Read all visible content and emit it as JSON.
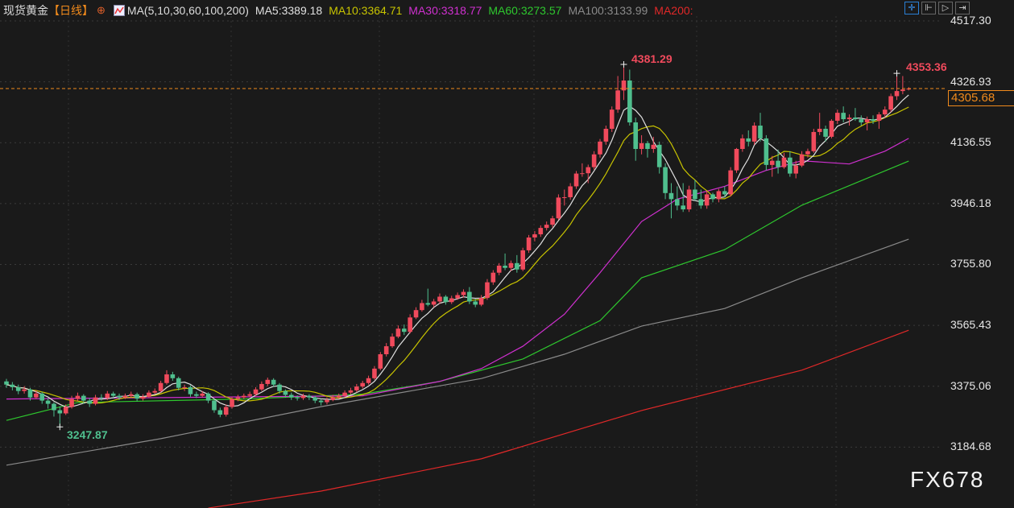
{
  "header": {
    "symbol": "现货黄金",
    "period": "【日线】",
    "ma_params": "MA(5,10,30,60,100,200)",
    "ma5": "MA5:3389.18",
    "ma10": "MA10:3364.71",
    "ma30": "MA30:3318.77",
    "ma60": "MA60:3273.57",
    "ma100": "MA100:3133.99",
    "ma200": "MA200:"
  },
  "toolbar": [
    "crosshair-icon",
    "zoom-range-icon",
    "play-icon",
    "exit-icon"
  ],
  "watermark": "FX678",
  "colors": {
    "up": "#f04a5c",
    "down": "#4fbf8e",
    "ma5": "#e0e0e0",
    "ma10": "#c8c400",
    "ma30": "#d030d0",
    "ma60": "#2ec82e",
    "ma100": "#8a8a8a",
    "ma200": "#e02828",
    "current": "#f08a1c",
    "background": "#1a1a1a"
  },
  "chart_data": {
    "type": "candlestick",
    "title": "",
    "y_ticks": [
      "4517.30",
      "4326.93",
      "4136.55",
      "3946.18",
      "3755.80",
      "3565.43",
      "3375.06",
      "3184.68"
    ],
    "ylim": [
      2994,
      4583
    ],
    "current_price": "4305.68",
    "annotations": {
      "high": "4381.29",
      "recent_high": "4353.36",
      "low": "3247.87"
    },
    "candles": [
      [
        3390,
        3398,
        3370,
        3380
      ],
      [
        3380,
        3388,
        3362,
        3372
      ],
      [
        3372,
        3380,
        3350,
        3360
      ],
      [
        3360,
        3375,
        3352,
        3365
      ],
      [
        3365,
        3370,
        3330,
        3340
      ],
      [
        3340,
        3362,
        3335,
        3352
      ],
      [
        3352,
        3358,
        3320,
        3330
      ],
      [
        3330,
        3338,
        3305,
        3320
      ],
      [
        3320,
        3325,
        3280,
        3300
      ],
      [
        3300,
        3312,
        3247.87,
        3290
      ],
      [
        3290,
        3318,
        3285,
        3310
      ],
      [
        3310,
        3345,
        3305,
        3335
      ],
      [
        3335,
        3355,
        3328,
        3345
      ],
      [
        3345,
        3350,
        3320,
        3330
      ],
      [
        3330,
        3338,
        3310,
        3320
      ],
      [
        3320,
        3348,
        3315,
        3340
      ],
      [
        3340,
        3350,
        3330,
        3338
      ],
      [
        3338,
        3360,
        3332,
        3352
      ],
      [
        3352,
        3358,
        3338,
        3345
      ],
      [
        3345,
        3352,
        3332,
        3340
      ],
      [
        3340,
        3352,
        3335,
        3345
      ],
      [
        3345,
        3358,
        3340,
        3350
      ],
      [
        3350,
        3355,
        3328,
        3336
      ],
      [
        3336,
        3350,
        3330,
        3342
      ],
      [
        3342,
        3362,
        3338,
        3355
      ],
      [
        3355,
        3368,
        3350,
        3360
      ],
      [
        3360,
        3392,
        3355,
        3385
      ],
      [
        3385,
        3425,
        3380,
        3412
      ],
      [
        3412,
        3420,
        3392,
        3400
      ],
      [
        3400,
        3405,
        3362,
        3370
      ],
      [
        3370,
        3380,
        3360,
        3372
      ],
      [
        3372,
        3378,
        3342,
        3350
      ],
      [
        3350,
        3358,
        3338,
        3345
      ],
      [
        3345,
        3360,
        3340,
        3352
      ],
      [
        3352,
        3356,
        3322,
        3330
      ],
      [
        3330,
        3335,
        3292,
        3300
      ],
      [
        3300,
        3308,
        3278,
        3286
      ],
      [
        3286,
        3318,
        3280,
        3310
      ],
      [
        3310,
        3342,
        3305,
        3335
      ],
      [
        3335,
        3348,
        3328,
        3340
      ],
      [
        3340,
        3352,
        3335,
        3345
      ],
      [
        3345,
        3358,
        3340,
        3350
      ],
      [
        3350,
        3372,
        3345,
        3365
      ],
      [
        3365,
        3390,
        3360,
        3382
      ],
      [
        3382,
        3402,
        3375,
        3395
      ],
      [
        3395,
        3400,
        3372,
        3380
      ],
      [
        3380,
        3385,
        3352,
        3360
      ],
      [
        3360,
        3365,
        3340,
        3348
      ],
      [
        3348,
        3355,
        3332,
        3340
      ],
      [
        3340,
        3346,
        3330,
        3338
      ],
      [
        3338,
        3352,
        3332,
        3345
      ],
      [
        3345,
        3350,
        3332,
        3340
      ],
      [
        3340,
        3345,
        3322,
        3330
      ],
      [
        3330,
        3335,
        3315,
        3325
      ],
      [
        3325,
        3340,
        3318,
        3332
      ],
      [
        3332,
        3348,
        3328,
        3340
      ],
      [
        3340,
        3352,
        3335,
        3345
      ],
      [
        3345,
        3362,
        3340,
        3355
      ],
      [
        3355,
        3370,
        3350,
        3362
      ],
      [
        3362,
        3382,
        3356,
        3374
      ],
      [
        3374,
        3392,
        3368,
        3385
      ],
      [
        3385,
        3408,
        3380,
        3400
      ],
      [
        3400,
        3438,
        3395,
        3430
      ],
      [
        3430,
        3482,
        3425,
        3475
      ],
      [
        3475,
        3510,
        3468,
        3500
      ],
      [
        3500,
        3540,
        3495,
        3530
      ],
      [
        3530,
        3565,
        3525,
        3555
      ],
      [
        3555,
        3568,
        3535,
        3545
      ],
      [
        3545,
        3600,
        3540,
        3590
      ],
      [
        3590,
        3622,
        3585,
        3613
      ],
      [
        3613,
        3645,
        3608,
        3635
      ],
      [
        3635,
        3680,
        3625,
        3630
      ],
      [
        3630,
        3648,
        3622,
        3640
      ],
      [
        3640,
        3665,
        3632,
        3655
      ],
      [
        3655,
        3660,
        3630,
        3638
      ],
      [
        3638,
        3658,
        3632,
        3650
      ],
      [
        3650,
        3668,
        3645,
        3660
      ],
      [
        3660,
        3678,
        3652,
        3670
      ],
      [
        3670,
        3685,
        3632,
        3640
      ],
      [
        3640,
        3648,
        3622,
        3630
      ],
      [
        3630,
        3660,
        3625,
        3651
      ],
      [
        3651,
        3710,
        3645,
        3700
      ],
      [
        3700,
        3738,
        3692,
        3730
      ],
      [
        3730,
        3760,
        3722,
        3752
      ],
      [
        3752,
        3790,
        3738,
        3745
      ],
      [
        3745,
        3768,
        3735,
        3760
      ],
      [
        3760,
        3785,
        3730,
        3740
      ],
      [
        3740,
        3808,
        3735,
        3800
      ],
      [
        3800,
        3848,
        3792,
        3840
      ],
      [
        3840,
        3860,
        3828,
        3850
      ],
      [
        3850,
        3878,
        3842,
        3870
      ],
      [
        3870,
        3890,
        3862,
        3880
      ],
      [
        3880,
        3908,
        3872,
        3900
      ],
      [
        3900,
        3975,
        3895,
        3965
      ],
      [
        3965,
        3990,
        3940,
        3966
      ],
      [
        3966,
        4010,
        3958,
        4000
      ],
      [
        4000,
        4048,
        3992,
        4040
      ],
      [
        4040,
        4072,
        4030,
        4041
      ],
      [
        4041,
        4068,
        4010,
        4060
      ],
      [
        4060,
        4110,
        4052,
        4100
      ],
      [
        4100,
        4148,
        4090,
        4140
      ],
      [
        4140,
        4190,
        4130,
        4180
      ],
      [
        4180,
        4250,
        4170,
        4240
      ],
      [
        4240,
        4345,
        4230,
        4300
      ],
      [
        4300,
        4381.29,
        4270,
        4331
      ],
      [
        4331,
        4365,
        4190,
        4200
      ],
      [
        4200,
        4215,
        4080,
        4117
      ],
      [
        4117,
        4160,
        4100,
        4135
      ],
      [
        4135,
        4142,
        4090,
        4117
      ],
      [
        4117,
        4155,
        4105,
        4130
      ],
      [
        4130,
        4140,
        4040,
        4060
      ],
      [
        4060,
        4072,
        3960,
        3979
      ],
      [
        3979,
        4010,
        3900,
        3960
      ],
      [
        3960,
        4000,
        3925,
        3940
      ],
      [
        3940,
        4010,
        3920,
        3928
      ],
      [
        3928,
        4002,
        3920,
        3990
      ],
      [
        3990,
        4020,
        3955,
        3960
      ],
      [
        3960,
        3990,
        3930,
        3940
      ],
      [
        3940,
        3985,
        3930,
        3975
      ],
      [
        3975,
        3980,
        3950,
        3960
      ],
      [
        3960,
        3992,
        3950,
        3985
      ],
      [
        3985,
        4000,
        3965,
        3975
      ],
      [
        3975,
        4060,
        3968,
        4050
      ],
      [
        4050,
        4120,
        4042,
        4117
      ],
      [
        4117,
        4162,
        4108,
        4150
      ],
      [
        4150,
        4175,
        4125,
        4140
      ],
      [
        4140,
        4200,
        4130,
        4190
      ],
      [
        4190,
        4230,
        4140,
        4150
      ],
      [
        4150,
        4160,
        4050,
        4067
      ],
      [
        4067,
        4095,
        4030,
        4080
      ],
      [
        4080,
        4115,
        4040,
        4060
      ],
      [
        4060,
        4105,
        4055,
        4090
      ],
      [
        4090,
        4110,
        4030,
        4040
      ],
      [
        4040,
        4080,
        4025,
        4065
      ],
      [
        4065,
        4110,
        4060,
        4100
      ],
      [
        4100,
        4118,
        4090,
        4110
      ],
      [
        4110,
        4180,
        4105,
        4170
      ],
      [
        4170,
        4230,
        4160,
        4180
      ],
      [
        4180,
        4190,
        4140,
        4155
      ],
      [
        4155,
        4210,
        4150,
        4205
      ],
      [
        4205,
        4240,
        4195,
        4230
      ],
      [
        4230,
        4250,
        4200,
        4210
      ],
      [
        4210,
        4225,
        4190,
        4215
      ],
      [
        4215,
        4245,
        4205,
        4210
      ],
      [
        4210,
        4222,
        4190,
        4200
      ],
      [
        4200,
        4218,
        4175,
        4210
      ],
      [
        4210,
        4222,
        4195,
        4205
      ],
      [
        4205,
        4232,
        4180,
        4225
      ],
      [
        4225,
        4250,
        4215,
        4240
      ],
      [
        4240,
        4290,
        4232,
        4282
      ],
      [
        4282,
        4353.36,
        4270,
        4298
      ],
      [
        4298,
        4345,
        4288,
        4303
      ],
      [
        4303,
        4310,
        4300,
        4305.68
      ]
    ],
    "ma_lines": {
      "ma30": [
        [
          0,
          3335
        ],
        [
          60,
          3345
        ],
        [
          73,
          3390
        ],
        [
          80,
          3430
        ],
        [
          87,
          3500
        ],
        [
          94,
          3600
        ],
        [
          100,
          3730
        ],
        [
          107,
          3890
        ],
        [
          113,
          3960
        ],
        [
          121,
          4000
        ],
        [
          128,
          4050
        ],
        [
          134,
          4080
        ],
        [
          142,
          4070
        ],
        [
          148,
          4110
        ],
        [
          152,
          4150
        ]
      ],
      "ma60": [
        [
          0,
          3268
        ],
        [
          12,
          3324
        ],
        [
          40,
          3335
        ],
        [
          60,
          3350
        ],
        [
          73,
          3390
        ],
        [
          87,
          3460
        ],
        [
          100,
          3580
        ],
        [
          107,
          3714
        ],
        [
          121,
          3802
        ],
        [
          134,
          3941
        ],
        [
          152,
          4079
        ]
      ],
      "ma100": [
        [
          0,
          3128
        ],
        [
          26,
          3211
        ],
        [
          53,
          3311
        ],
        [
          80,
          3399
        ],
        [
          94,
          3475
        ],
        [
          107,
          3563
        ],
        [
          121,
          3618
        ],
        [
          134,
          3714
        ],
        [
          152,
          3835
        ]
      ],
      "ma200": [
        [
          34,
          2994
        ],
        [
          53,
          3047
        ],
        [
          80,
          3148
        ],
        [
          107,
          3299
        ],
        [
          134,
          3425
        ],
        [
          152,
          3550
        ]
      ]
    }
  }
}
